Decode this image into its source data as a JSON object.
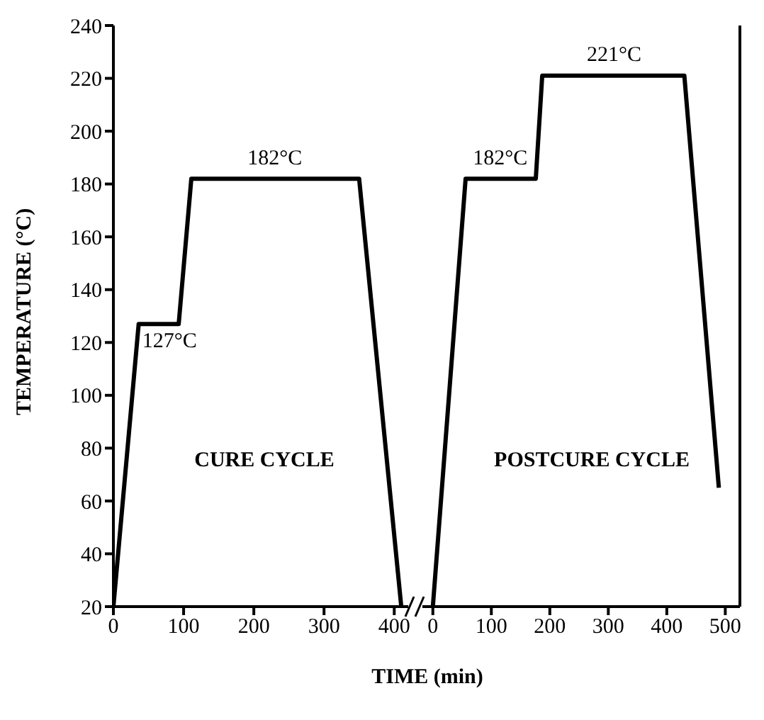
{
  "chart_data": [
    {
      "type": "line",
      "ylabel": "TEMPERATURE (°C)",
      "xlabel": "TIME (min)",
      "xlim": [
        0,
        430
      ],
      "xticks": [
        0,
        100,
        200,
        300,
        400
      ],
      "ylim": [
        20,
        240
      ],
      "yticks": [
        20,
        40,
        60,
        80,
        100,
        120,
        140,
        160,
        180,
        200,
        220,
        240
      ],
      "marker": "none",
      "grid": false,
      "legend": false,
      "series": [
        {
          "color": "#000000",
          "x": [
            0,
            36,
            93,
            111,
            350,
            410
          ],
          "values": [
            20,
            127,
            127,
            182,
            182,
            20
          ]
        }
      ],
      "annotations": [
        {
          "text": "127°C",
          "x": 80,
          "y": 127
        },
        {
          "text": "182°C",
          "x": 230,
          "y": 182
        },
        "CURE CYCLE"
      ]
    },
    {
      "type": "line",
      "xlim": [
        -30,
        525
      ],
      "xticks": [
        0,
        100,
        200,
        300,
        400,
        500
      ],
      "ylim": [
        20,
        240
      ],
      "marker": "none",
      "grid": false,
      "legend": false,
      "tick_labels": "x",
      "series": [
        {
          "color": "#000000",
          "x": [
            0,
            56,
            176,
            187,
            430,
            489
          ],
          "values": [
            20,
            182,
            182,
            221,
            221,
            65
          ]
        }
      ],
      "annotations": [
        {
          "text": "182°C",
          "x": 115,
          "y": 182
        },
        {
          "text": "221°C",
          "x": 310,
          "y": 221
        },
        "POSTCURE CYCLE"
      ]
    }
  ]
}
